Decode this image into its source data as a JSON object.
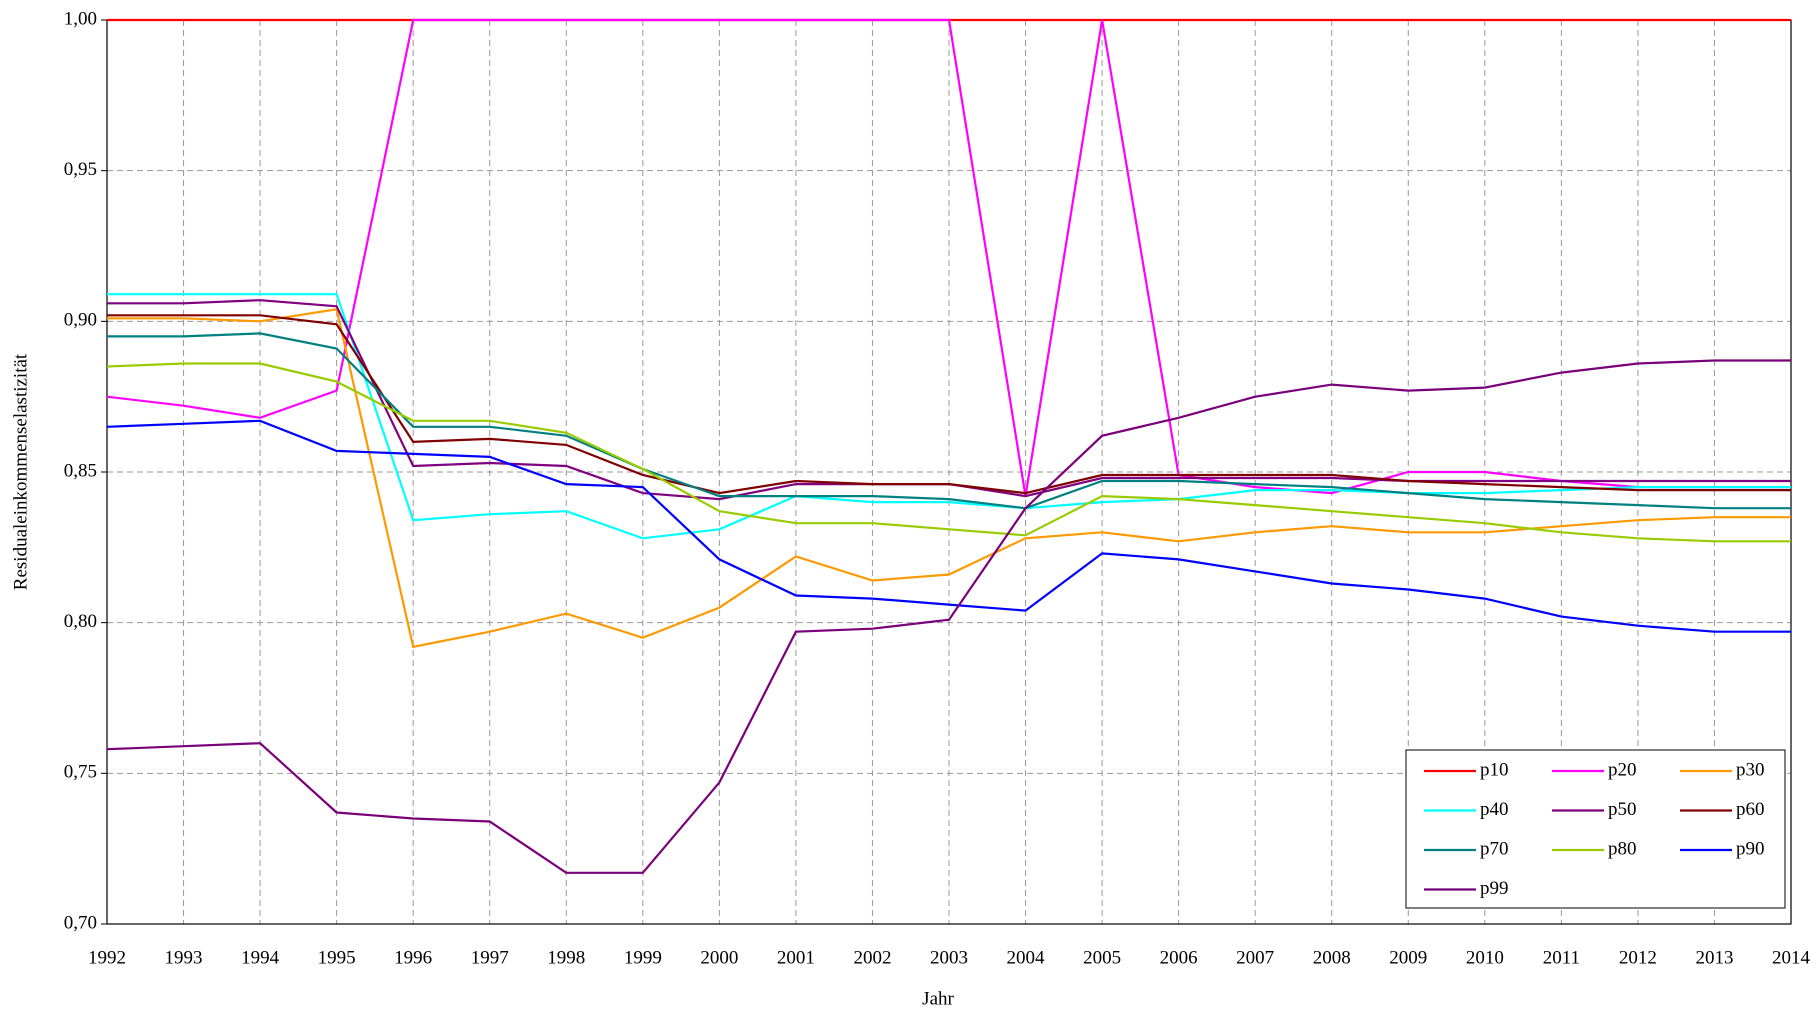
{
  "chart_data": {
    "type": "line",
    "x_label": "Jahr",
    "y_label": "Residualeinkommenselastizität",
    "categories": [
      "1992",
      "1993",
      "1994",
      "1995",
      "1996",
      "1997",
      "1998",
      "1999",
      "2000",
      "2001",
      "2002",
      "2003",
      "2004",
      "2005",
      "2006",
      "2007",
      "2008",
      "2009",
      "2010",
      "2011",
      "2012",
      "2013",
      "2014"
    ],
    "ylim": [
      0.7,
      1.0
    ],
    "yticks": [
      {
        "value": 0.7,
        "label": "0,70"
      },
      {
        "value": 0.75,
        "label": "0,75"
      },
      {
        "value": 0.8,
        "label": "0,80"
      },
      {
        "value": 0.85,
        "label": "0,85"
      },
      {
        "value": 0.9,
        "label": "0,90"
      },
      {
        "value": 0.95,
        "label": "0,95"
      },
      {
        "value": 1.0,
        "label": "1,00"
      }
    ],
    "grid": true,
    "legend_position": "lower right",
    "series": [
      {
        "name": "p10",
        "color": "#ff0000",
        "values": [
          1,
          1,
          1,
          1,
          1,
          1,
          1,
          1,
          1,
          1,
          1,
          1,
          1,
          1,
          1,
          1,
          1,
          1,
          1,
          1,
          1,
          1,
          1
        ]
      },
      {
        "name": "p20",
        "color": "#ff00ff",
        "values": [
          0.875,
          0.872,
          0.868,
          0.877,
          1,
          1,
          1,
          1,
          1,
          1,
          1,
          1,
          0.842,
          1,
          0.849,
          0.845,
          0.843,
          0.85,
          0.85,
          0.847,
          0.845,
          0.845,
          0.845
        ]
      },
      {
        "name": "p30",
        "color": "#ff9900",
        "values": [
          0.901,
          0.901,
          0.9,
          0.904,
          0.792,
          0.797,
          0.803,
          0.795,
          0.805,
          0.822,
          0.814,
          0.816,
          0.828,
          0.83,
          0.827,
          0.83,
          0.832,
          0.83,
          0.83,
          0.832,
          0.834,
          0.835,
          0.835
        ]
      },
      {
        "name": "p40",
        "color": "#00ffff",
        "values": [
          0.909,
          0.909,
          0.909,
          0.909,
          0.834,
          0.836,
          0.837,
          0.828,
          0.831,
          0.842,
          0.84,
          0.84,
          0.838,
          0.84,
          0.841,
          0.844,
          0.844,
          0.843,
          0.843,
          0.844,
          0.845,
          0.845,
          0.845
        ]
      },
      {
        "name": "p50",
        "color": "#800080",
        "values": [
          0.906,
          0.906,
          0.907,
          0.905,
          0.852,
          0.853,
          0.852,
          0.843,
          0.841,
          0.846,
          0.846,
          0.846,
          0.842,
          0.848,
          0.848,
          0.848,
          0.848,
          0.847,
          0.847,
          0.847,
          0.847,
          0.847,
          0.847
        ]
      },
      {
        "name": "p60",
        "color": "#800000",
        "values": [
          0.902,
          0.902,
          0.902,
          0.899,
          0.86,
          0.861,
          0.859,
          0.849,
          0.843,
          0.847,
          0.846,
          0.846,
          0.843,
          0.849,
          0.849,
          0.849,
          0.849,
          0.847,
          0.846,
          0.845,
          0.844,
          0.844,
          0.844
        ]
      },
      {
        "name": "p70",
        "color": "#008080",
        "values": [
          0.895,
          0.895,
          0.896,
          0.891,
          0.865,
          0.865,
          0.862,
          0.851,
          0.842,
          0.842,
          0.842,
          0.841,
          0.838,
          0.847,
          0.847,
          0.846,
          0.845,
          0.843,
          0.841,
          0.84,
          0.839,
          0.838,
          0.838
        ]
      },
      {
        "name": "p80",
        "color": "#99cc00",
        "values": [
          0.885,
          0.886,
          0.886,
          0.88,
          0.867,
          0.867,
          0.863,
          0.851,
          0.837,
          0.833,
          0.833,
          0.831,
          0.829,
          0.842,
          0.841,
          0.839,
          0.837,
          0.835,
          0.833,
          0.83,
          0.828,
          0.827,
          0.827
        ]
      },
      {
        "name": "p90",
        "color": "#0000ff",
        "values": [
          0.865,
          0.866,
          0.867,
          0.857,
          0.856,
          0.855,
          0.846,
          0.845,
          0.821,
          0.809,
          0.808,
          0.806,
          0.804,
          0.823,
          0.821,
          0.817,
          0.813,
          0.811,
          0.808,
          0.802,
          0.799,
          0.797,
          0.797
        ]
      },
      {
        "name": "p99",
        "color": "#7a007a",
        "values": [
          0.758,
          0.759,
          0.76,
          0.737,
          0.735,
          0.734,
          0.717,
          0.717,
          0.747,
          0.797,
          0.798,
          0.801,
          0.838,
          0.862,
          0.868,
          0.875,
          0.879,
          0.877,
          0.878,
          0.883,
          0.886,
          0.887,
          0.887
        ]
      }
    ]
  }
}
